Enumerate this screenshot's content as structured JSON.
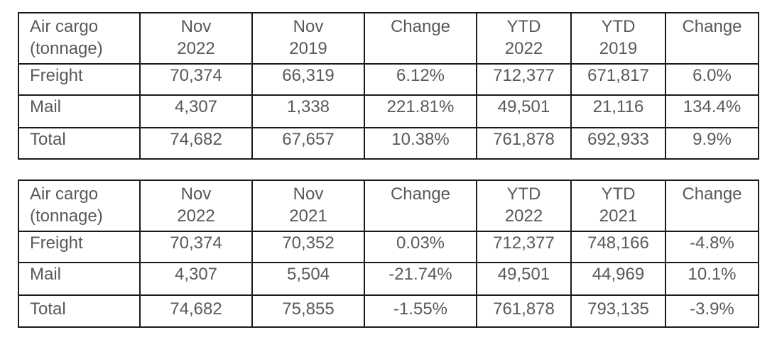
{
  "tables": [
    {
      "header": {
        "label_line1": "Air cargo",
        "label_line2": "(tonnage)",
        "col1_line1": "Nov",
        "col1_line2": "2022",
        "col2_line1": "Nov",
        "col2_line2": "2019",
        "col3": "Change",
        "col4_line1": "YTD",
        "col4_line2": "2022",
        "col5_line1": "YTD",
        "col5_line2": "2019",
        "col6": "Change"
      },
      "rows": [
        {
          "label": "Freight",
          "nov_cur": "70,374",
          "nov_prev": "66,319",
          "change": "6.12%",
          "ytd_cur": "712,377",
          "ytd_prev": "671,817",
          "ytd_change": "6.0%"
        },
        {
          "label": "Mail",
          "nov_cur": "4,307",
          "nov_prev": "1,338",
          "change": "221.81%",
          "ytd_cur": "49,501",
          "ytd_prev": "21,116",
          "ytd_change": "134.4%"
        },
        {
          "label": "Total",
          "nov_cur": "74,682",
          "nov_prev": "67,657",
          "change": "10.38%",
          "ytd_cur": "761,878",
          "ytd_prev": "692,933",
          "ytd_change": "9.9%"
        }
      ]
    },
    {
      "header": {
        "label_line1": "Air cargo",
        "label_line2": "(tonnage)",
        "col1_line1": "Nov",
        "col1_line2": "2022",
        "col2_line1": "Nov",
        "col2_line2": "2021",
        "col3": "Change",
        "col4_line1": "YTD",
        "col4_line2": "2022",
        "col5_line1": "YTD",
        "col5_line2": "2021",
        "col6": "Change"
      },
      "rows": [
        {
          "label": "Freight",
          "nov_cur": "70,374",
          "nov_prev": "70,352",
          "change": "0.03%",
          "ytd_cur": "712,377",
          "ytd_prev": "748,166",
          "ytd_change": "-4.8%"
        },
        {
          "label": "Mail",
          "nov_cur": "4,307",
          "nov_prev": "5,504",
          "change": "-21.74%",
          "ytd_cur": "49,501",
          "ytd_prev": "44,969",
          "ytd_change": "10.1%"
        },
        {
          "label": "Total",
          "nov_cur": "74,682",
          "nov_prev": "75,855",
          "change": "-1.55%",
          "ytd_cur": "761,878",
          "ytd_prev": "793,135",
          "ytd_change": "-3.9%"
        }
      ]
    }
  ]
}
